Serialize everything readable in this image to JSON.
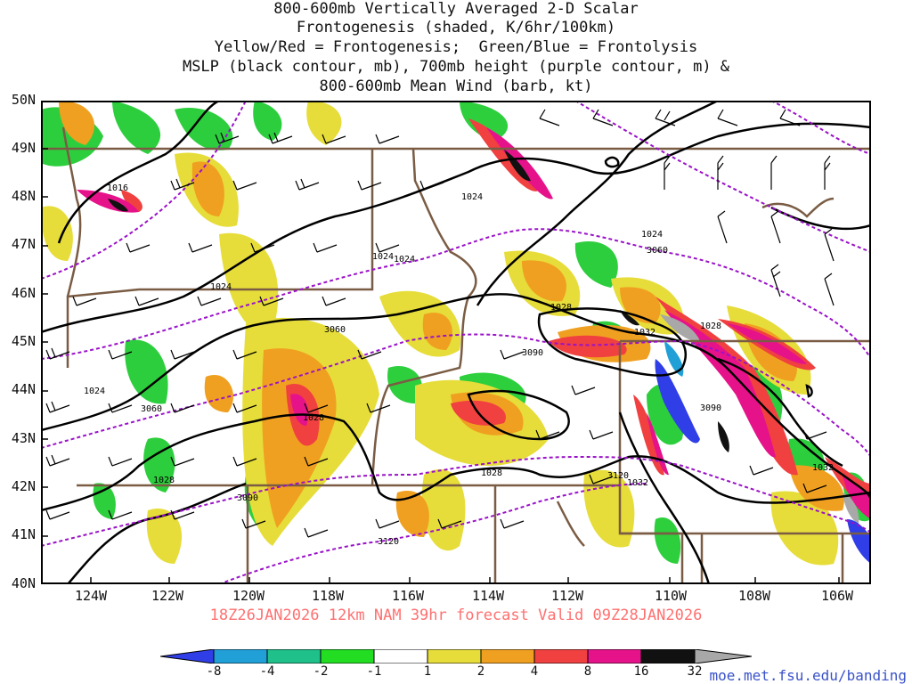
{
  "title_lines": [
    "800-600mb Vertically Averaged 2-D Scalar",
    "Frontogenesis (shaded, K/6hr/100km)",
    "Yellow/Red = Frontogenesis;  Green/Blue = Frontolysis",
    "MSLP (black contour, mb), 700mb height (purple contour, m) &",
    "800-600mb Mean Wind (barb, kt)"
  ],
  "valid_line": "18Z26JAN2026 12km NAM 39hr forecast Valid 09Z28JAN2026",
  "credit": "moe.met.fsu.edu/banding",
  "latitude_labels": [
    "50N",
    "49N",
    "48N",
    "47N",
    "46N",
    "45N",
    "44N",
    "43N",
    "42N",
    "41N",
    "40N"
  ],
  "longitude_labels": [
    "124W",
    "122W",
    "120W",
    "118W",
    "116W",
    "114W",
    "112W",
    "110W",
    "108W",
    "106W"
  ],
  "colorbar": {
    "labels": [
      "-8",
      "-4",
      "-2",
      "-1",
      "1",
      "2",
      "4",
      "8",
      "16",
      "32"
    ],
    "colors": [
      "#2f3ee6",
      "#21a0d8",
      "#1fc08a",
      "#19d06a",
      "#22dd22",
      "#ffffff",
      "#e6dd3a",
      "#f0a020",
      "#f04040",
      "#e6128a",
      "#111111",
      "#a8a8a8"
    ]
  },
  "isobar_labels": [
    {
      "text": "1016"
    },
    {
      "text": "1024"
    },
    {
      "text": "1024"
    },
    {
      "text": "1024"
    },
    {
      "text": "1024"
    },
    {
      "text": "1024"
    },
    {
      "text": "1024"
    },
    {
      "text": "1028"
    },
    {
      "text": "1028"
    },
    {
      "text": "1028"
    },
    {
      "text": "1028"
    },
    {
      "text": "1028"
    },
    {
      "text": "1032"
    },
    {
      "text": "1032"
    },
    {
      "text": "1032"
    }
  ],
  "height_labels": [
    {
      "text": "3060"
    },
    {
      "text": "3060"
    },
    {
      "text": "3060"
    },
    {
      "text": "3090"
    },
    {
      "text": "3090"
    },
    {
      "text": "3090"
    },
    {
      "text": "3120"
    },
    {
      "text": "3120"
    }
  ],
  "colors": {
    "isobar": "#000000",
    "height_contour": "#9a12c8",
    "border": "#7a5c44",
    "valid_text": "#ff7070",
    "credit_text": "#3a52c9"
  }
}
